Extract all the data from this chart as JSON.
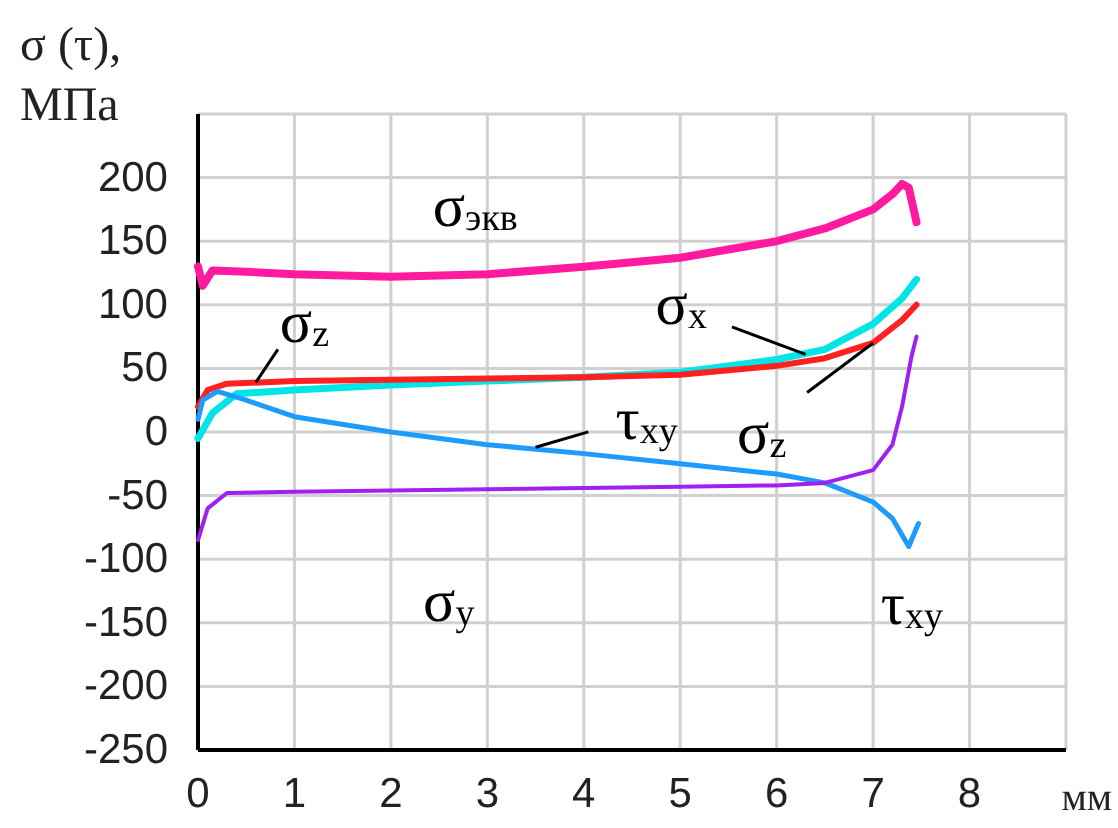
{
  "chart_data": {
    "type": "line",
    "ylabel": "σ (τ),\nМПа",
    "xlabel": "мм",
    "xlim": [
      0,
      9
    ],
    "ylim": [
      -250,
      250
    ],
    "xticks": [
      0,
      1,
      2,
      3,
      4,
      5,
      6,
      7,
      8
    ],
    "yticks": [
      -250,
      -200,
      -150,
      -100,
      -50,
      0,
      50,
      100,
      150,
      200
    ],
    "grid": true,
    "line_style": "solid",
    "marker": "none",
    "series": [
      {
        "color": "#ff1aa0",
        "x": [
          0,
          0.05,
          0.15,
          0.5,
          1,
          2,
          3,
          4,
          5,
          6,
          6.5,
          7,
          7.2,
          7.3,
          7.37,
          7.45
        ],
        "values": [
          130,
          115,
          127,
          126,
          124,
          122,
          124,
          130,
          137,
          150,
          160,
          175,
          187,
          195,
          192,
          165
        ]
      },
      {
        "color": "#00e5e5",
        "x": [
          0,
          0.15,
          0.4,
          1,
          2,
          3,
          4,
          5,
          6,
          6.5,
          7,
          7.3,
          7.45
        ],
        "values": [
          -5,
          15,
          30,
          33,
          37,
          40,
          43,
          47,
          57,
          65,
          85,
          105,
          120
        ]
      },
      {
        "color": "#ff2020",
        "x": [
          0,
          0.1,
          0.3,
          1,
          2,
          3,
          4,
          5,
          6,
          6.5,
          7,
          7.3,
          7.45
        ],
        "values": [
          20,
          33,
          38,
          40,
          41,
          42,
          43,
          45,
          52,
          58,
          70,
          88,
          100
        ]
      },
      {
        "color": "#1e9bff",
        "x": [
          0,
          0.05,
          0.2,
          0.5,
          1,
          2,
          3,
          4,
          5,
          6,
          6.5,
          7,
          7.2,
          7.37,
          7.47
        ],
        "values": [
          10,
          25,
          32,
          25,
          12,
          0,
          -10,
          -17,
          -25,
          -33,
          -40,
          -55,
          -68,
          -90,
          -72
        ]
      },
      {
        "color": "#a020f0",
        "x": [
          0,
          0.1,
          0.3,
          1,
          2,
          3,
          4,
          5,
          6,
          6.5,
          7,
          7.2,
          7.3,
          7.4,
          7.45
        ],
        "values": [
          -85,
          -60,
          -48,
          -47,
          -46,
          -45,
          -44,
          -43,
          -42,
          -40,
          -30,
          -10,
          20,
          60,
          75
        ]
      }
    ],
    "annotations": [
      {
        "text": "σ$_{экв}$",
        "x": 2.6,
        "y": 123
      },
      {
        "text": "σ$_{x}$",
        "x": 6.3,
        "y": 61
      },
      {
        "text": "σ$_{z}$",
        "x": 0.6,
        "y": 39
      },
      {
        "text": "τ$_{xy}$",
        "x": 3.5,
        "y": -12
      },
      {
        "text": "σ$_{z}$",
        "x": 7,
        "y": 70
      },
      {
        "text": "σ$_{y}$",
        "x": 2.5,
        "y": -46
      },
      {
        "text": "τ$_{xy}$",
        "x": 7.37,
        "y": -90
      }
    ]
  }
}
